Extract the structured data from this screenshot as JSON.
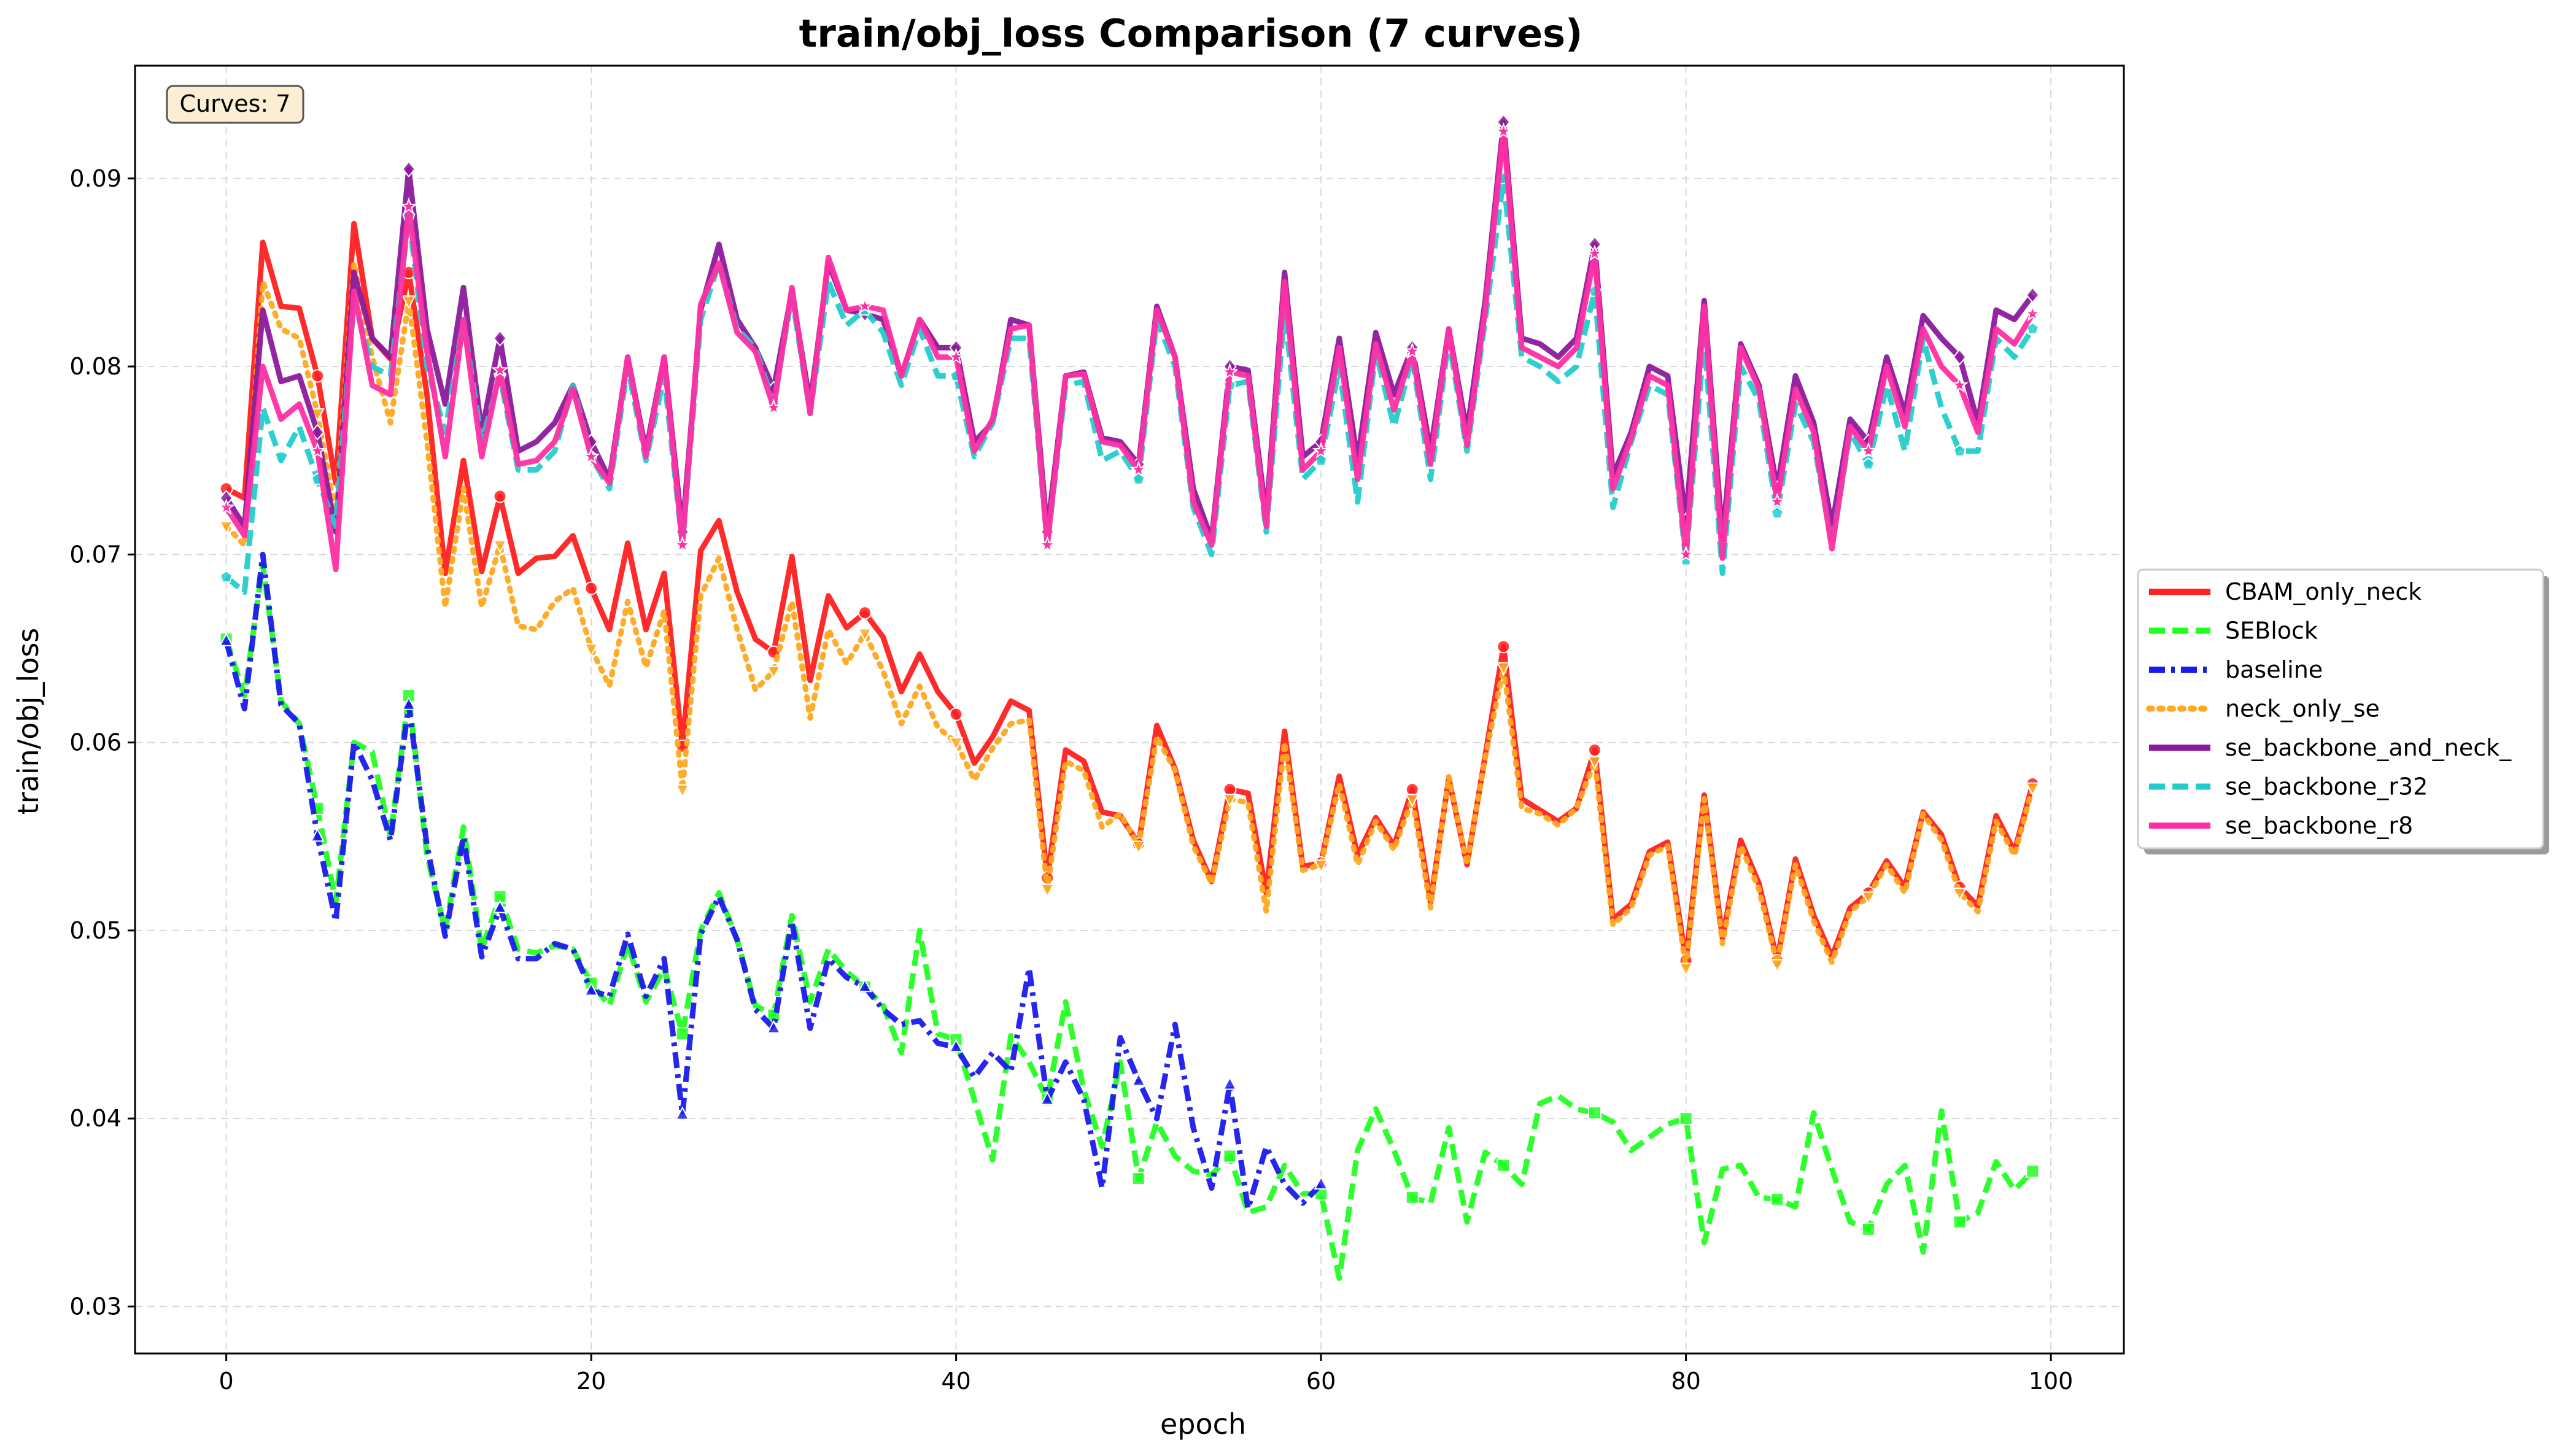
{
  "chart_data": {
    "type": "line",
    "title": "train/obj_loss Comparison (7 curves)",
    "xlabel": "epoch",
    "ylabel": "train/obj_loss",
    "xlim": [
      -5,
      104
    ],
    "ylim": [
      0.0275,
      0.096
    ],
    "xticks": [
      0,
      20,
      40,
      60,
      80,
      100
    ],
    "yticks": [
      0.03,
      0.04,
      0.05,
      0.06,
      0.07,
      0.08,
      0.09
    ],
    "xtick_labels": [
      "0",
      "20",
      "40",
      "60",
      "80",
      "100"
    ],
    "ytick_labels": [
      "0.03",
      "0.04",
      "0.05",
      "0.06",
      "0.07",
      "0.08",
      "0.09"
    ],
    "grid": true,
    "legend_position": "outside-right",
    "annotation": "Curves: 7",
    "series": [
      {
        "name": "CBAM_only_neck",
        "color": "#ff2020",
        "dash": "solid",
        "marker": "circle",
        "values": [
          0.0735,
          0.073,
          0.0866,
          0.0832,
          0.0831,
          0.0795,
          0.0738,
          0.0876,
          0.0815,
          0.0804,
          0.085,
          0.0785,
          0.069,
          0.075,
          0.0691,
          0.0731,
          0.069,
          0.0698,
          0.0699,
          0.071,
          0.0682,
          0.066,
          0.0706,
          0.066,
          0.069,
          0.0598,
          0.0702,
          0.0718,
          0.068,
          0.0655,
          0.0648,
          0.0699,
          0.0633,
          0.0678,
          0.0661,
          0.0669,
          0.0656,
          0.0627,
          0.0647,
          0.0627,
          0.0615,
          0.0589,
          0.0603,
          0.0622,
          0.0617,
          0.0528,
          0.0596,
          0.059,
          0.0563,
          0.0561,
          0.0546,
          0.0609,
          0.0586,
          0.0548,
          0.0526,
          0.0575,
          0.0573,
          0.052,
          0.0606,
          0.0534,
          0.0536,
          0.0582,
          0.054,
          0.056,
          0.0545,
          0.0575,
          0.0515,
          0.0581,
          0.0535,
          0.0593,
          0.0651,
          0.057,
          0.0564,
          0.0558,
          0.0565,
          0.0596,
          0.0506,
          0.0514,
          0.0542,
          0.0547,
          0.0484,
          0.0572,
          0.0496,
          0.0548,
          0.0525,
          0.0484,
          0.0538,
          0.0508,
          0.0486,
          0.0512,
          0.052,
          0.0537,
          0.0523,
          0.0563,
          0.0551,
          0.0523,
          0.0513,
          0.0561,
          0.0542,
          0.0578
        ]
      },
      {
        "name": "SEBlock",
        "color": "#22ff22",
        "dash": "dashed",
        "marker": "square",
        "values": [
          0.0655,
          0.0625,
          0.0695,
          0.0622,
          0.061,
          0.0565,
          0.0515,
          0.06,
          0.0595,
          0.055,
          0.0625,
          0.054,
          0.05,
          0.0555,
          0.049,
          0.0518,
          0.049,
          0.0488,
          0.0492,
          0.049,
          0.0472,
          0.046,
          0.0493,
          0.0462,
          0.048,
          0.0445,
          0.05,
          0.052,
          0.0495,
          0.046,
          0.0455,
          0.0508,
          0.0462,
          0.049,
          0.0478,
          0.047,
          0.046,
          0.0435,
          0.05,
          0.0445,
          0.0442,
          0.041,
          0.0378,
          0.0444,
          0.043,
          0.041,
          0.0462,
          0.0415,
          0.0385,
          0.043,
          0.0368,
          0.0398,
          0.038,
          0.0372,
          0.037,
          0.038,
          0.035,
          0.0353,
          0.0375,
          0.036,
          0.036,
          0.0315,
          0.0383,
          0.0405,
          0.0383,
          0.0358,
          0.0355,
          0.0395,
          0.0345,
          0.0382,
          0.0375,
          0.0365,
          0.0408,
          0.0412,
          0.0405,
          0.0403,
          0.0398,
          0.0383,
          0.039,
          0.0397,
          0.04,
          0.0334,
          0.0373,
          0.0375,
          0.0358,
          0.0357,
          0.0353,
          0.0403,
          0.0373,
          0.0345,
          0.0341,
          0.0365,
          0.0375,
          0.0329,
          0.0404,
          0.0345,
          0.035,
          0.0377,
          0.0362,
          0.0372
        ]
      },
      {
        "name": "baseline",
        "color": "#1a1aee",
        "dash": "dashdot",
        "marker": "triangle",
        "values": [
          0.0654,
          0.0618,
          0.07,
          0.062,
          0.061,
          0.055,
          0.0505,
          0.06,
          0.058,
          0.0548,
          0.062,
          0.0545,
          0.0497,
          0.055,
          0.0486,
          0.0512,
          0.0485,
          0.0485,
          0.0493,
          0.049,
          0.0468,
          0.0465,
          0.0498,
          0.0465,
          0.0485,
          0.0402,
          0.0498,
          0.0518,
          0.0495,
          0.0458,
          0.0448,
          0.0505,
          0.0448,
          0.0485,
          0.0475,
          0.047,
          0.0458,
          0.045,
          0.0452,
          0.044,
          0.0438,
          0.0422,
          0.0435,
          0.0425,
          0.048,
          0.041,
          0.043,
          0.041,
          0.0363,
          0.0443,
          0.042,
          0.04,
          0.045,
          0.0395,
          0.0363,
          0.0418,
          0.0352,
          0.0385,
          0.0365,
          0.0355,
          0.0365
        ]
      },
      {
        "name": "neck_only_se",
        "color": "#ffa820",
        "dash": "dotted",
        "marker": "inverted-triangle",
        "values": [
          0.0715,
          0.0705,
          0.0845,
          0.082,
          0.0815,
          0.0775,
          0.072,
          0.0855,
          0.0805,
          0.077,
          0.0835,
          0.076,
          0.0672,
          0.0735,
          0.0672,
          0.0705,
          0.0662,
          0.066,
          0.0675,
          0.0682,
          0.065,
          0.063,
          0.0675,
          0.064,
          0.067,
          0.0575,
          0.0678,
          0.0698,
          0.066,
          0.0628,
          0.0638,
          0.0675,
          0.0613,
          0.066,
          0.0642,
          0.0658,
          0.0638,
          0.061,
          0.063,
          0.0608,
          0.06,
          0.058,
          0.0597,
          0.061,
          0.0612,
          0.0522,
          0.059,
          0.0585,
          0.0555,
          0.0562,
          0.0545,
          0.0603,
          0.0585,
          0.0545,
          0.0525,
          0.057,
          0.0568,
          0.051,
          0.06,
          0.0532,
          0.0535,
          0.0578,
          0.0535,
          0.0558,
          0.0543,
          0.057,
          0.0512,
          0.0582,
          0.0535,
          0.0592,
          0.064,
          0.0565,
          0.0562,
          0.0556,
          0.0565,
          0.059,
          0.0503,
          0.0512,
          0.054,
          0.0545,
          0.048,
          0.057,
          0.0493,
          0.0545,
          0.0522,
          0.0482,
          0.0535,
          0.0505,
          0.0483,
          0.051,
          0.0518,
          0.0535,
          0.052,
          0.0562,
          0.0548,
          0.052,
          0.051,
          0.0558,
          0.054,
          0.0576
        ]
      },
      {
        "name": "se_backbone_and_neck_",
        "color": "#8b1a9b",
        "dash": "solid",
        "marker": "diamond",
        "values": [
          0.073,
          0.0715,
          0.083,
          0.0792,
          0.0795,
          0.0765,
          0.0712,
          0.085,
          0.0815,
          0.0805,
          0.0905,
          0.082,
          0.078,
          0.0842,
          0.0765,
          0.0815,
          0.0755,
          0.076,
          0.077,
          0.079,
          0.076,
          0.074,
          0.0805,
          0.0755,
          0.0805,
          0.0712,
          0.083,
          0.0865,
          0.0825,
          0.081,
          0.0788,
          0.084,
          0.078,
          0.0855,
          0.083,
          0.0828,
          0.0825,
          0.0795,
          0.0825,
          0.081,
          0.081,
          0.076,
          0.077,
          0.0825,
          0.0822,
          0.0712,
          0.0795,
          0.0797,
          0.0762,
          0.076,
          0.0748,
          0.0832,
          0.0805,
          0.0735,
          0.0708,
          0.08,
          0.0798,
          0.072,
          0.085,
          0.0752,
          0.076,
          0.0815,
          0.075,
          0.0818,
          0.0785,
          0.081,
          0.0755,
          0.082,
          0.0765,
          0.0835,
          0.093,
          0.0815,
          0.0812,
          0.0805,
          0.0815,
          0.0865,
          0.0742,
          0.0765,
          0.08,
          0.0795,
          0.0718,
          0.0835,
          0.0708,
          0.0812,
          0.079,
          0.0735,
          0.0795,
          0.077,
          0.0715,
          0.0772,
          0.076,
          0.0805,
          0.0775,
          0.0827,
          0.0815,
          0.0805,
          0.077,
          0.083,
          0.0825,
          0.0838
        ]
      },
      {
        "name": "se_backbone_r32",
        "color": "#22cccc",
        "dash": "dashed",
        "marker": "pentagon",
        "values": [
          0.0688,
          0.068,
          0.0778,
          0.075,
          0.0768,
          0.074,
          0.0715,
          0.0835,
          0.08,
          0.0795,
          0.088,
          0.08,
          0.0765,
          0.0825,
          0.076,
          0.0795,
          0.0745,
          0.0745,
          0.0755,
          0.079,
          0.0752,
          0.0735,
          0.08,
          0.075,
          0.0795,
          0.0705,
          0.0825,
          0.0855,
          0.082,
          0.081,
          0.078,
          0.0838,
          0.0775,
          0.0845,
          0.0822,
          0.083,
          0.0818,
          0.079,
          0.082,
          0.0795,
          0.0795,
          0.0752,
          0.077,
          0.0815,
          0.0815,
          0.0705,
          0.079,
          0.0792,
          0.075,
          0.0755,
          0.074,
          0.0825,
          0.08,
          0.0725,
          0.07,
          0.079,
          0.0792,
          0.0712,
          0.083,
          0.074,
          0.075,
          0.08,
          0.0728,
          0.0808,
          0.0768,
          0.0805,
          0.074,
          0.0815,
          0.0755,
          0.0825,
          0.09,
          0.0805,
          0.08,
          0.0792,
          0.08,
          0.084,
          0.0725,
          0.076,
          0.079,
          0.0785,
          0.0697,
          0.0815,
          0.069,
          0.08,
          0.0782,
          0.0722,
          0.078,
          0.076,
          0.0705,
          0.0765,
          0.0748,
          0.079,
          0.0755,
          0.0815,
          0.0778,
          0.0755,
          0.0755,
          0.0815,
          0.0805,
          0.082
        ]
      },
      {
        "name": "se_backbone_r8",
        "color": "#ff2fa3",
        "dash": "solid",
        "marker": "star",
        "values": [
          0.0725,
          0.071,
          0.08,
          0.0772,
          0.078,
          0.0755,
          0.0692,
          0.084,
          0.079,
          0.0785,
          0.0885,
          0.0808,
          0.0752,
          0.0825,
          0.0752,
          0.0798,
          0.0748,
          0.075,
          0.076,
          0.0788,
          0.0752,
          0.0738,
          0.0805,
          0.0752,
          0.0805,
          0.0705,
          0.0833,
          0.0855,
          0.0818,
          0.0808,
          0.0778,
          0.0842,
          0.0775,
          0.0858,
          0.083,
          0.0832,
          0.083,
          0.0795,
          0.0825,
          0.0805,
          0.0805,
          0.0755,
          0.0772,
          0.082,
          0.0822,
          0.0705,
          0.0795,
          0.0796,
          0.076,
          0.0758,
          0.0745,
          0.083,
          0.0805,
          0.0728,
          0.0705,
          0.0797,
          0.0795,
          0.0715,
          0.0845,
          0.0745,
          0.0755,
          0.081,
          0.074,
          0.0812,
          0.0777,
          0.0808,
          0.0748,
          0.082,
          0.0758,
          0.083,
          0.0925,
          0.081,
          0.0805,
          0.08,
          0.081,
          0.086,
          0.0735,
          0.0762,
          0.0795,
          0.079,
          0.07,
          0.0832,
          0.0698,
          0.081,
          0.0788,
          0.0728,
          0.0788,
          0.0765,
          0.0703,
          0.0768,
          0.0755,
          0.08,
          0.0768,
          0.082,
          0.08,
          0.079,
          0.0765,
          0.082,
          0.0812,
          0.0828
        ]
      }
    ]
  }
}
